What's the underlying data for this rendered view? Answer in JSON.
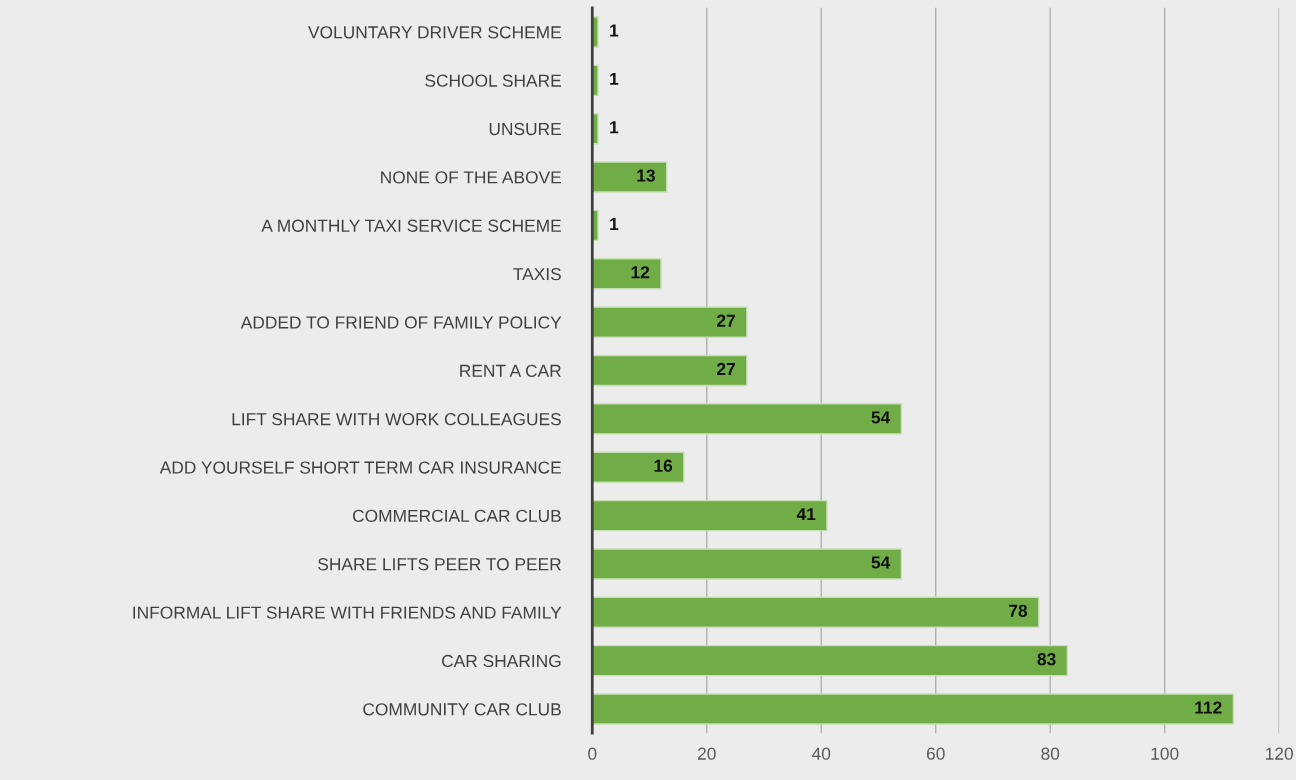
{
  "chart_data": {
    "type": "bar",
    "orientation": "horizontal",
    "categories": [
      "VOLUNTARY DRIVER SCHEME",
      "SCHOOL SHARE",
      "UNSURE",
      "NONE OF THE ABOVE",
      "A MONTHLY TAXI SERVICE SCHEME",
      "TAXIS",
      "ADDED TO FRIEND OF FAMILY POLICY",
      "RENT A CAR",
      "LIFT SHARE WITH WORK COLLEAGUES",
      "ADD YOURSELF SHORT TERM CAR INSURANCE",
      "COMMERCIAL CAR CLUB",
      "SHARE LIFTS PEER TO PEER",
      "INFORMAL LIFT SHARE WITH FRIENDS AND FAMILY",
      "CAR SHARING",
      "COMMUNITY CAR CLUB"
    ],
    "values": [
      1,
      1,
      1,
      13,
      1,
      12,
      27,
      27,
      54,
      16,
      41,
      54,
      78,
      83,
      112
    ],
    "color": "#70ad47",
    "xlim": [
      0,
      120
    ],
    "xticks": [
      0,
      20,
      40,
      60,
      80,
      100,
      120
    ],
    "grid": "x",
    "data_labels": true
  }
}
